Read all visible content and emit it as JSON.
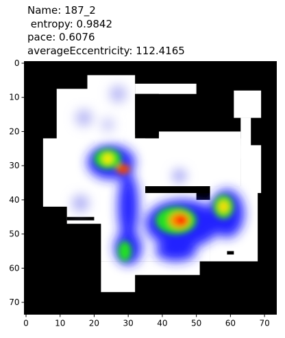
{
  "chart_data": {
    "type": "image",
    "title": "Name: 187_2\n entropy: 0.9842\npace: 0.6076\naverageEccentricity: 112.4165",
    "xlim": [
      -0.5,
      73.5
    ],
    "ylim": [
      73.5,
      -0.5
    ],
    "xticks": [
      0,
      10,
      20,
      30,
      40,
      50,
      60,
      70
    ],
    "yticks": [
      0,
      10,
      20,
      30,
      40,
      50,
      60,
      70
    ]
  }
}
